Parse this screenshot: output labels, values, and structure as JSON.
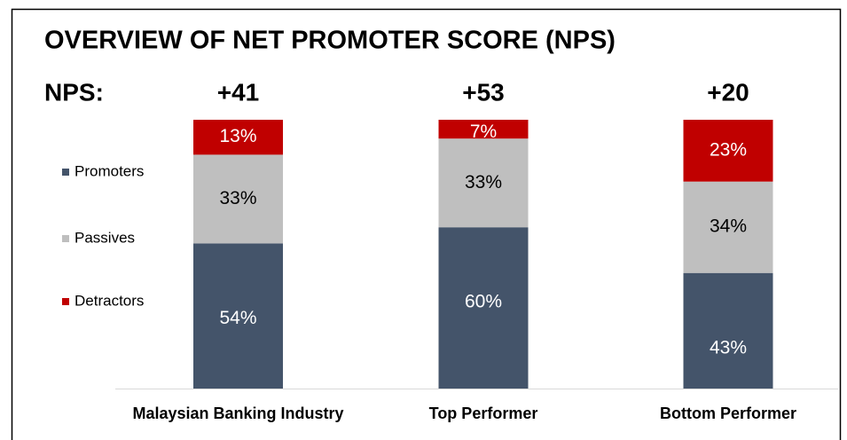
{
  "chart_data": {
    "type": "stacked_bar",
    "title": "OVERVIEW OF NET PROMOTER SCORE (NPS)",
    "nps_title": "NPS:",
    "nps": [
      "+41",
      "+53",
      "+20"
    ],
    "categories": [
      "Malaysian Banking Industry",
      "Top Performer",
      "Bottom Performer"
    ],
    "series": [
      {
        "name": "Promoters",
        "color": "#44546a",
        "values": [
          54,
          60,
          43
        ],
        "value_labels": [
          "54%",
          "60%",
          "43%"
        ],
        "label_color": "#ffffff"
      },
      {
        "name": "Passives",
        "color": "#bfbfbf",
        "values": [
          33,
          33,
          34
        ],
        "value_labels": [
          "33%",
          "33%",
          "34%"
        ],
        "label_color": "#000000"
      },
      {
        "name": "Detractors",
        "color": "#c00000",
        "values": [
          13,
          7,
          23
        ],
        "value_labels": [
          "13%",
          "7%",
          "23%"
        ],
        "label_color": "#ffffff"
      }
    ],
    "ylim": [
      0,
      100
    ],
    "legend": "left"
  }
}
